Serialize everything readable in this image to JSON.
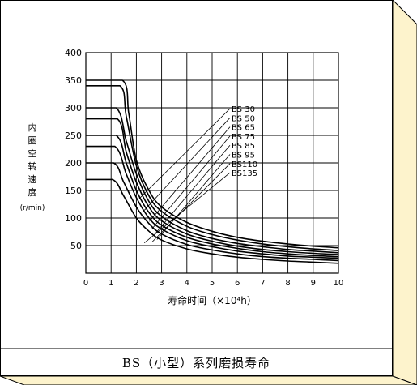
{
  "caption": "BS（小型）系列磨损寿命",
  "colors": {
    "panel": "#ffffff",
    "bevel": "#fdf3cc",
    "bevel_dark": "#e9d89a",
    "ink": "#000000"
  },
  "chart_data": {
    "type": "line",
    "title": "",
    "xlabel": "寿命时间（×10⁴h）",
    "ylabel": [
      "内",
      "圈",
      "空",
      "转",
      "速",
      "度",
      "(r/min)"
    ],
    "xlim": [
      0,
      10
    ],
    "ylim": [
      0,
      400
    ],
    "x_ticks": [
      0,
      1,
      2,
      3,
      4,
      5,
      6,
      7,
      8,
      9,
      10
    ],
    "y_ticks": [
      50,
      100,
      150,
      200,
      250,
      300,
      350,
      400
    ],
    "grid": true,
    "legend": "callout labels right of curves",
    "series": [
      {
        "name": "BS 30",
        "points": [
          [
            0,
            350
          ],
          [
            1.45,
            350
          ],
          [
            1.7,
            290
          ],
          [
            2,
            205
          ],
          [
            2.5,
            150
          ],
          [
            3,
            120
          ],
          [
            4,
            92
          ],
          [
            5,
            76
          ],
          [
            6,
            65
          ],
          [
            7,
            58
          ],
          [
            8,
            53
          ],
          [
            9,
            49
          ],
          [
            10,
            46
          ]
        ]
      },
      {
        "name": "BS 50",
        "points": [
          [
            0,
            340
          ],
          [
            1.35,
            340
          ],
          [
            1.6,
            285
          ],
          [
            2,
            195
          ],
          [
            2.5,
            140
          ],
          [
            3,
            112
          ],
          [
            4,
            85
          ],
          [
            5,
            70
          ],
          [
            6,
            60
          ],
          [
            7,
            53
          ],
          [
            8,
            48
          ],
          [
            9,
            44
          ],
          [
            10,
            41
          ]
        ]
      },
      {
        "name": "BS 65",
        "points": [
          [
            0,
            300
          ],
          [
            1.2,
            300
          ],
          [
            1.6,
            240
          ],
          [
            2,
            180
          ],
          [
            2.5,
            130
          ],
          [
            3,
            103
          ],
          [
            4,
            77
          ],
          [
            5,
            63
          ],
          [
            6,
            54
          ],
          [
            7,
            48
          ],
          [
            8,
            43
          ],
          [
            9,
            40
          ],
          [
            10,
            37
          ]
        ]
      },
      {
        "name": "BS 75",
        "points": [
          [
            0,
            280
          ],
          [
            1.25,
            280
          ],
          [
            1.6,
            220
          ],
          [
            2,
            165
          ],
          [
            2.5,
            120
          ],
          [
            3,
            95
          ],
          [
            4,
            71
          ],
          [
            5,
            58
          ],
          [
            6,
            49
          ],
          [
            7,
            43
          ],
          [
            8,
            39
          ],
          [
            9,
            36
          ],
          [
            10,
            34
          ]
        ]
      },
      {
        "name": "BS 85",
        "points": [
          [
            0,
            250
          ],
          [
            1.2,
            250
          ],
          [
            1.6,
            200
          ],
          [
            2,
            150
          ],
          [
            2.5,
            110
          ],
          [
            3,
            87
          ],
          [
            4,
            65
          ],
          [
            5,
            53
          ],
          [
            6,
            45
          ],
          [
            7,
            39
          ],
          [
            8,
            35
          ],
          [
            9,
            32
          ],
          [
            10,
            30
          ]
        ]
      },
      {
        "name": "BS 95",
        "points": [
          [
            0,
            230
          ],
          [
            1.15,
            230
          ],
          [
            1.6,
            180
          ],
          [
            2,
            137
          ],
          [
            2.5,
            100
          ],
          [
            3,
            80
          ],
          [
            4,
            59
          ],
          [
            5,
            48
          ],
          [
            6,
            40
          ],
          [
            7,
            35
          ],
          [
            8,
            31
          ],
          [
            9,
            29
          ],
          [
            10,
            27
          ]
        ]
      },
      {
        "name": "BS110",
        "points": [
          [
            0,
            200
          ],
          [
            1.1,
            200
          ],
          [
            1.5,
            165
          ],
          [
            2,
            120
          ],
          [
            2.5,
            90
          ],
          [
            3,
            71
          ],
          [
            4,
            52
          ],
          [
            5,
            42
          ],
          [
            6,
            35
          ],
          [
            7,
            30
          ],
          [
            8,
            27
          ],
          [
            9,
            25
          ],
          [
            10,
            23
          ]
        ]
      },
      {
        "name": "BS135",
        "points": [
          [
            0,
            170
          ],
          [
            1.05,
            170
          ],
          [
            1.5,
            140
          ],
          [
            2,
            100
          ],
          [
            2.5,
            76
          ],
          [
            3,
            60
          ],
          [
            4,
            44
          ],
          [
            5,
            35
          ],
          [
            6,
            29
          ],
          [
            7,
            25
          ],
          [
            8,
            22
          ],
          [
            9,
            20
          ],
          [
            10,
            18
          ]
        ]
      }
    ]
  }
}
